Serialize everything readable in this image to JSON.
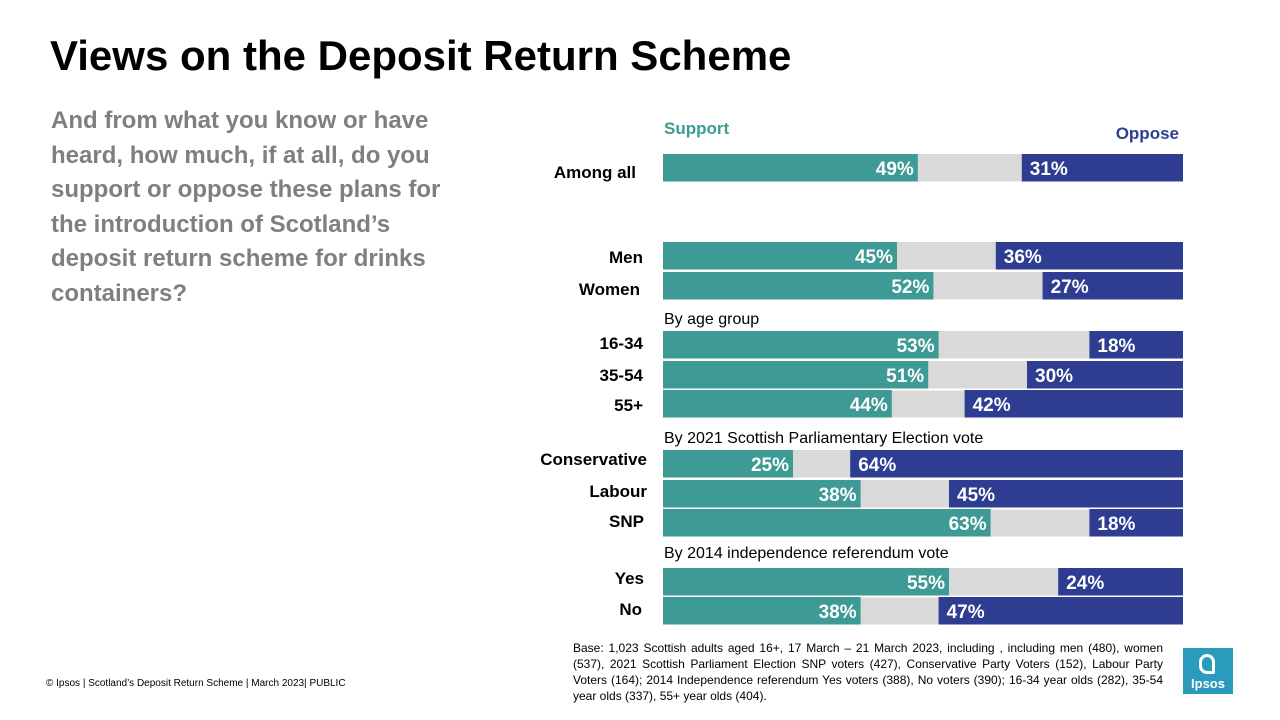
{
  "slide": {
    "title": "Views on the Deposit Return Scheme",
    "question": "And from what you know or have heard, how much, if at all, do you support or oppose these plans for the introduction of Scotland’s deposit return scheme for drinks containers?",
    "base": "Base: 1,023 Scottish adults aged 16+, 17 March – 21 March 2023, including , including men (480), women (537), 2021 Scottish Parliament Election SNP voters (427), Conservative  Party Voters (152), Labour Party Voters (164); 2014 Independence referendum  Yes voters (388), No voters (390); 16-34 year olds (282), 35-54 year olds (337), 55+ year olds (404).",
    "footer": "© Ipsos | Scotland’s Deposit Return Scheme | March 2023| PUBLIC",
    "logo_text": "Ipsos"
  },
  "colors": {
    "support": "#3e9a94",
    "neutral": "#d9d9d9",
    "oppose": "#2e3d92",
    "support_label": "#3e9a94",
    "oppose_label": "#2e3d92"
  },
  "chart_data": {
    "type": "bar",
    "orientation": "horizontal",
    "stacked": true,
    "legend": {
      "support": "Support",
      "oppose": "Oppose"
    },
    "group_labels": [
      "By age group",
      "By 2021 Scottish Parliamentary Election vote",
      "By 2014 independence referendum vote"
    ],
    "categories": [
      "Among all",
      "Men",
      "Women",
      "16-34",
      "35-54",
      "55+",
      "Conservative",
      "Labour",
      "SNP",
      "Yes",
      "No"
    ],
    "series": [
      {
        "name": "Support",
        "values": [
          49,
          45,
          52,
          53,
          51,
          44,
          25,
          38,
          63,
          55,
          38
        ]
      },
      {
        "name": "Oppose",
        "values": [
          31,
          36,
          27,
          18,
          30,
          42,
          64,
          45,
          18,
          24,
          47
        ]
      }
    ],
    "value_labels": {
      "support": [
        "49%",
        "45%",
        "52%",
        "53%",
        "51%",
        "44%",
        "25%",
        "38%",
        "63%",
        "55%",
        "38%"
      ],
      "oppose": [
        "31%",
        "36%",
        "27%",
        "18%",
        "30%",
        "42%",
        "64%",
        "45%",
        "18%",
        "24%",
        "47%"
      ]
    },
    "xlim": [
      0,
      100
    ]
  }
}
